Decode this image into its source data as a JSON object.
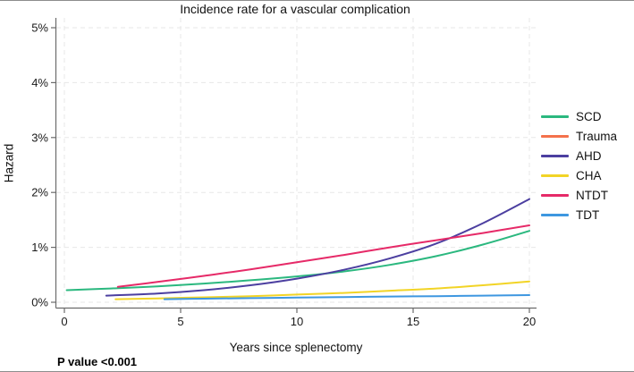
{
  "chart_data": {
    "type": "line",
    "title": "Incidence rate for a vascular complication",
    "xlabel": "Years since splenectomy",
    "ylabel": "Hazard",
    "annotation": "P value <0.001",
    "units": "points are [years_since_splenectomy, hazard_percent]",
    "xlim": [
      0,
      20
    ],
    "ylim_percent": [
      0,
      5
    ],
    "x_ticks": [
      0,
      5,
      10,
      15,
      20
    ],
    "y_ticks": [
      {
        "value": 0,
        "label": "0%"
      },
      {
        "value": 1,
        "label": "1%"
      },
      {
        "value": 2,
        "label": "2%"
      },
      {
        "value": 3,
        "label": "3%"
      },
      {
        "value": 4,
        "label": "4%"
      },
      {
        "value": 5,
        "label": "5%"
      }
    ],
    "grid": {
      "style": "dashed",
      "color": "#e7e7e7",
      "horizontal": true,
      "vertical": true
    },
    "axis_color": "#6b6b6b",
    "text_color": "#1a1a1a",
    "legend_position": "right-outside",
    "series": [
      {
        "name": "SCD",
        "color": "#2bb87f",
        "points": [
          [
            0.1,
            0.22
          ],
          [
            2,
            0.25
          ],
          [
            4,
            0.29
          ],
          [
            6,
            0.34
          ],
          [
            8,
            0.4
          ],
          [
            10,
            0.47
          ],
          [
            12,
            0.56
          ],
          [
            14,
            0.68
          ],
          [
            16,
            0.84
          ],
          [
            18,
            1.05
          ],
          [
            20,
            1.3
          ]
        ]
      },
      {
        "name": "Trauma",
        "color": "#f4714c",
        "points": null,
        "note": "curve not separately visible in plot area (overlapped by other curves)"
      },
      {
        "name": "AHD",
        "color": "#4c3fa0",
        "points": [
          [
            1.8,
            0.12
          ],
          [
            4,
            0.16
          ],
          [
            6,
            0.22
          ],
          [
            8,
            0.31
          ],
          [
            10,
            0.43
          ],
          [
            12,
            0.59
          ],
          [
            14,
            0.8
          ],
          [
            16,
            1.07
          ],
          [
            18,
            1.44
          ],
          [
            20,
            1.88
          ]
        ]
      },
      {
        "name": "CHA",
        "color": "#f2d426",
        "points": [
          [
            2.2,
            0.055
          ],
          [
            4,
            0.07
          ],
          [
            6,
            0.09
          ],
          [
            8,
            0.11
          ],
          [
            10,
            0.14
          ],
          [
            12,
            0.17
          ],
          [
            14,
            0.21
          ],
          [
            16,
            0.25
          ],
          [
            18,
            0.31
          ],
          [
            20,
            0.38
          ]
        ]
      },
      {
        "name": "NTDT",
        "color": "#e62a68",
        "points": [
          [
            2.3,
            0.28
          ],
          [
            4,
            0.37
          ],
          [
            6,
            0.48
          ],
          [
            8,
            0.6
          ],
          [
            10,
            0.73
          ],
          [
            12,
            0.86
          ],
          [
            14,
            1.0
          ],
          [
            16,
            1.13
          ],
          [
            18,
            1.26
          ],
          [
            20,
            1.4
          ]
        ]
      },
      {
        "name": "TDT",
        "color": "#3e97e0",
        "points": [
          [
            4.3,
            0.055
          ],
          [
            6,
            0.065
          ],
          [
            8,
            0.075
          ],
          [
            10,
            0.085
          ],
          [
            12,
            0.095
          ],
          [
            14,
            0.105
          ],
          [
            16,
            0.11
          ],
          [
            18,
            0.12
          ],
          [
            20,
            0.13
          ]
        ]
      }
    ]
  }
}
